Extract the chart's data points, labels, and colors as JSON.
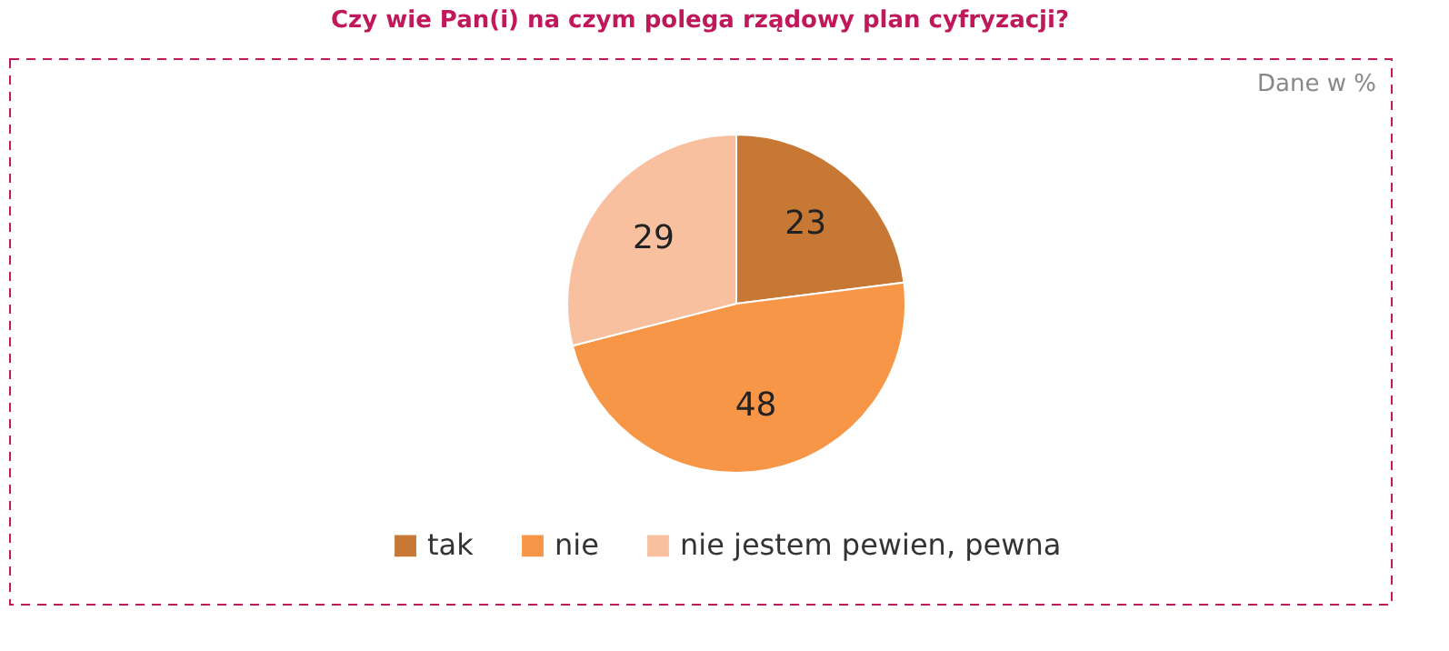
{
  "chart_data": {
    "type": "pie",
    "title": "Czy wie Pan(i) na czym polega rządowy plan cyfryzacji?",
    "categories": [
      "tak",
      "nie",
      "nie jestem pewien, pewna"
    ],
    "values": [
      23,
      48,
      29
    ],
    "colors": [
      "#c77835",
      "#f79646",
      "#f9c0a0"
    ],
    "data_labels": true,
    "legend": "bottom",
    "annotations": [
      "Dane w %"
    ]
  }
}
